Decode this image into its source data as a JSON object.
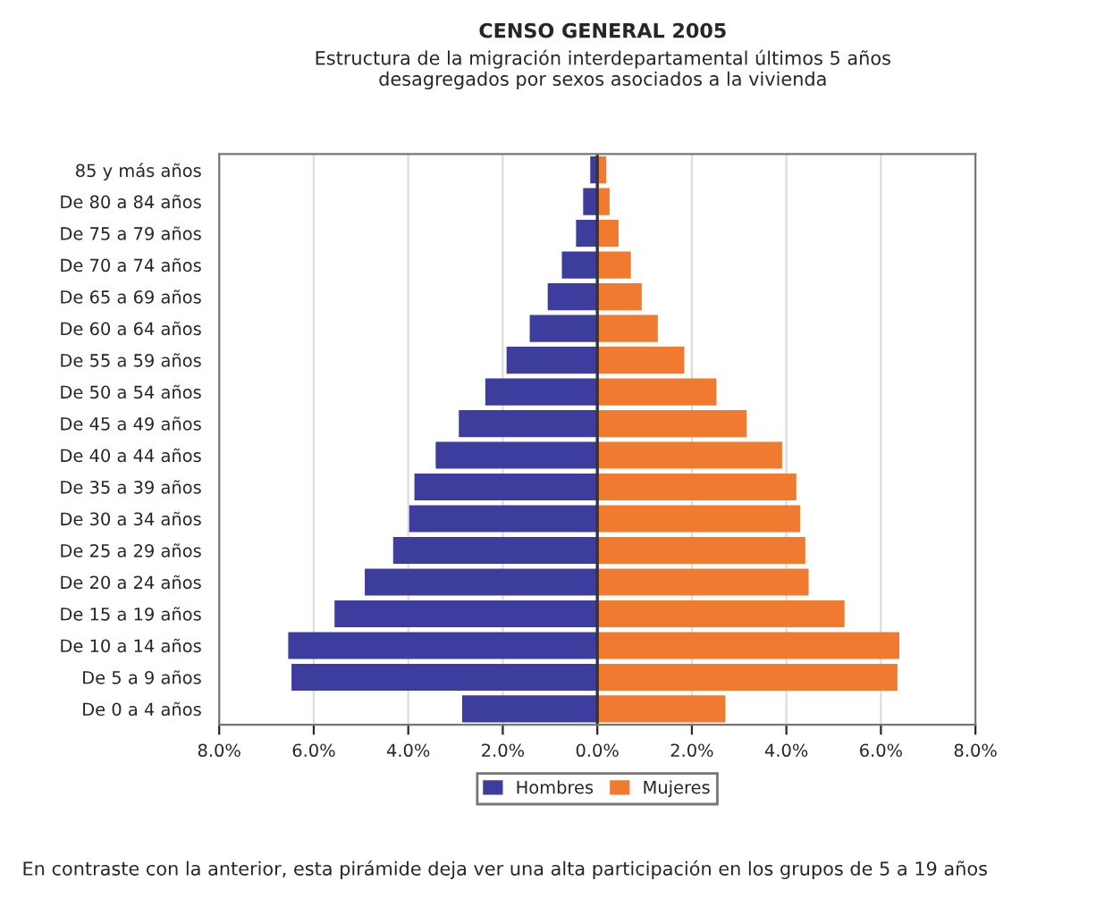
{
  "chart_data": {
    "type": "bar",
    "orientation": "horizontal",
    "stacked": true,
    "title": "CENSO GENERAL 2005",
    "subtitle": "Estructura de la migración interdepartamental últimos 5 años\ndesagregados por sexos asociados a la vivienda",
    "categories": [
      "85 y más años",
      "De 80 a 84 años",
      "De 75 a 79 años",
      "De 70 a 74 años",
      "De 65 a 69 años",
      "De 60 a 64 años",
      "De 55 a 59 años",
      "De 50 a 54 años",
      "De 45 a 49 años",
      "De 40 a 44 años",
      "De 35 a 39 años",
      "De 30 a 34 años",
      "De 25 a 29 años",
      "De 20 a 24 años",
      "De 15 a 19 años",
      "De 10 a 14 años",
      "De 5 a 9 años",
      "De 0 a 4 años"
    ],
    "series": [
      {
        "name": "Hombres",
        "color": "#3d3d9e",
        "values": [
          -0.15,
          -0.3,
          -0.45,
          -0.75,
          -1.05,
          -1.43,
          -1.92,
          -2.37,
          -2.93,
          -3.42,
          -3.87,
          -3.98,
          -4.32,
          -4.92,
          -5.56,
          -6.54,
          -6.47,
          -2.86
        ]
      },
      {
        "name": "Mujeres",
        "color": "#f07a30",
        "values": [
          0.19,
          0.26,
          0.45,
          0.71,
          0.94,
          1.28,
          1.84,
          2.52,
          3.16,
          3.91,
          4.21,
          4.29,
          4.4,
          4.47,
          5.23,
          6.39,
          6.35,
          2.71
        ]
      }
    ],
    "xlim": [
      -8,
      8
    ],
    "xticks": [
      {
        "value": -8,
        "label": "8.0%"
      },
      {
        "value": -6,
        "label": "6.0%"
      },
      {
        "value": -4,
        "label": "4.0%"
      },
      {
        "value": -2,
        "label": "2.0%"
      },
      {
        "value": 0,
        "label": "0.0%"
      },
      {
        "value": 2,
        "label": "2.0%"
      },
      {
        "value": 4,
        "label": "4.0%"
      },
      {
        "value": 6,
        "label": "6.0%"
      },
      {
        "value": 8,
        "label": "8.0%"
      }
    ],
    "grid": "x",
    "legend": "bottom",
    "annotations": [
      "En contraste con la anterior, esta pirámide deja ver una alta participación en los grupos de 5 a 19 años"
    ]
  }
}
